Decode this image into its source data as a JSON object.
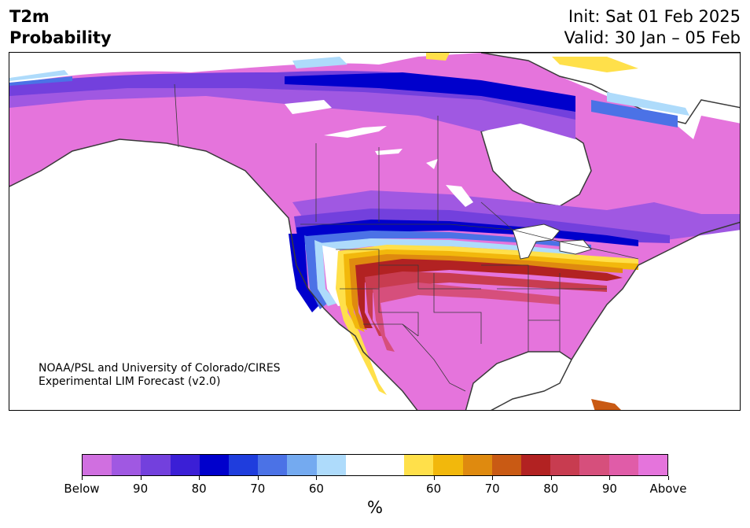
{
  "title": {
    "left_line1": "T2m",
    "left_line2": "Probability",
    "init": "Init: Sat 01 Feb 2025",
    "valid": "Valid: 30 Jan – 05 Feb"
  },
  "credit": {
    "line1": "NOAA/PSL and University of Colorado/CIRES",
    "line2": "Experimental LIM Forecast (v2.0)"
  },
  "colorbar": {
    "unit": "%",
    "colors": [
      "#d06fe0",
      "#a058e2",
      "#7340dd",
      "#3b1fd6",
      "#0000cc",
      "#1f3ddd",
      "#4b72e6",
      "#74aaf0",
      "#aedbfb",
      "#ffffff",
      "#ffffff",
      "#ffe04a",
      "#f2b80c",
      "#df8a0f",
      "#c95a14",
      "#b22222",
      "#c83c50",
      "#d64f7c",
      "#e05ca8",
      "#e574dc"
    ],
    "ticks": [
      "Below",
      "90",
      "80",
      "70",
      "60",
      "60",
      "70",
      "80",
      "90",
      "Above"
    ]
  },
  "map": {
    "colors": {
      "land_outline": "#3a3a3a",
      "below_strong": "#d06fe0",
      "below_90": "#a058e2",
      "below_85": "#7340dd",
      "below_80": "#0000cc",
      "below_70": "#4b72e6",
      "below_60": "#aedbfb",
      "above_60": "#ffe04a",
      "above_65": "#f2b80c",
      "above_70": "#df8a0f",
      "above_80": "#b22222",
      "above_85": "#c83c50",
      "above_90": "#d64f7c",
      "above_strong": "#e574dc"
    }
  }
}
